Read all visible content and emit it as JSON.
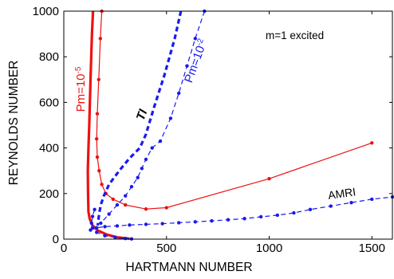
{
  "chart_data": {
    "type": "line",
    "title": "",
    "xlabel": "HARTMANN NUMBER",
    "ylabel": "REYNOLDS NUMBER",
    "xlim": [
      0,
      1600
    ],
    "ylim": [
      0,
      1000
    ],
    "xticks": [
      0,
      500,
      1000,
      1500
    ],
    "yticks": [
      0,
      200,
      400,
      600,
      800,
      1000
    ],
    "grid": false,
    "colors": {
      "red": "#ee1111",
      "blue": "#1a1aee"
    },
    "annotations": {
      "top_right": "m=1 excited",
      "red_label": "Pm=10",
      "red_label_exp": "-5",
      "blue_label": "Pm=10",
      "blue_label_exp": "-2",
      "ti": "TI",
      "amri": "AMRI"
    },
    "series": [
      {
        "color": "red",
        "style": "thick-solid",
        "x": [
          142,
          137,
          130,
          124,
          120,
          117,
          118,
          120,
          126,
          140,
          165,
          210,
          260,
          320
        ],
        "y": [
          1000,
          900,
          700,
          500,
          400,
          300,
          200,
          120,
          90,
          60,
          38,
          20,
          8,
          2
        ]
      },
      {
        "color": "red",
        "style": "thin-solid-markers",
        "x": [
          185,
          178,
          170,
          163,
          160,
          163,
          172,
          185,
          205,
          240,
          300,
          400,
          500,
          1000,
          1500
        ],
        "y": [
          1000,
          880,
          700,
          550,
          440,
          360,
          300,
          240,
          200,
          175,
          150,
          132,
          138,
          265,
          422
        ]
      },
      {
        "color": "blue",
        "style": "thick-dashed",
        "x": [
          570,
          540,
          490,
          440,
          400,
          370,
          320,
          270,
          220,
          195,
          180,
          172,
          165
        ],
        "y": [
          1000,
          880,
          720,
          580,
          460,
          400,
          355,
          300,
          240,
          190,
          150,
          110,
          60
        ]
      },
      {
        "color": "blue",
        "style": "thin-dashed-markers",
        "x": [
          685,
          640,
          600,
          560,
          520,
          470,
          430,
          400,
          380,
          360,
          330,
          300,
          260,
          220,
          180
        ],
        "y": [
          1000,
          880,
          760,
          640,
          530,
          430,
          400,
          350,
          310,
          270,
          230,
          190,
          150,
          110,
          70
        ]
      },
      {
        "color": "blue",
        "style": "thin-dashed-markers",
        "x": [
          130,
          160,
          200,
          260,
          320,
          400,
          480,
          560,
          640,
          720,
          800,
          880,
          960,
          1040,
          1120,
          1200,
          1300,
          1400,
          1500,
          1600
        ],
        "y": [
          40,
          50,
          55,
          58,
          62,
          65,
          68,
          72,
          76,
          80,
          85,
          90,
          98,
          105,
          115,
          130,
          145,
          160,
          175,
          185
        ]
      },
      {
        "color": "blue",
        "style": "thin-dashed-markers",
        "x": [
          150,
          140,
          135,
          140,
          160,
          200,
          250,
          300,
          330
        ],
        "y": [
          130,
          100,
          70,
          50,
          30,
          15,
          8,
          3,
          1
        ]
      }
    ]
  }
}
